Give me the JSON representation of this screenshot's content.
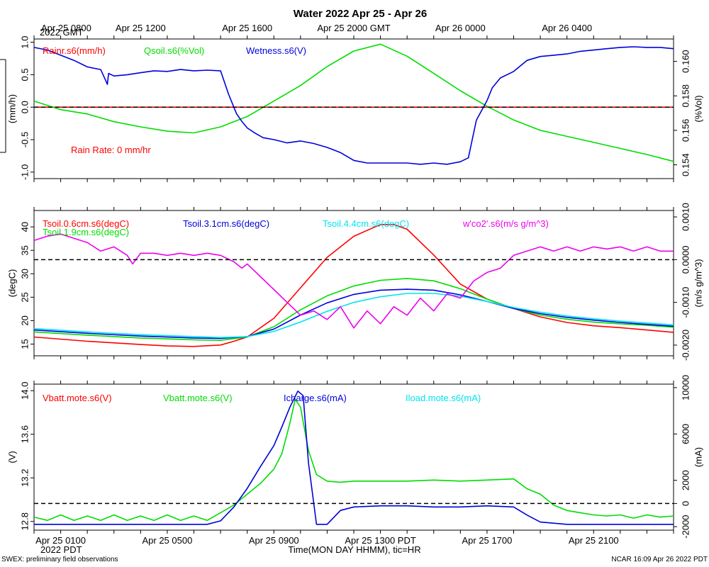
{
  "title": "Water 2022 Apr 25 - Apr 26",
  "top_time_axis": {
    "ticks": [
      {
        "hour": 0,
        "label": "Apr 25 0800"
      },
      {
        "hour": 4,
        "label": "Apr 25 1200"
      },
      {
        "hour": 8,
        "label": "Apr 25 1600"
      },
      {
        "hour": 12,
        "label": "Apr 25 2000 GMT"
      },
      {
        "hour": 16,
        "label": "Apr 26 0000"
      },
      {
        "hour": 20,
        "label": "Apr 26 0400"
      }
    ],
    "year_label": "2022 GMT"
  },
  "bottom_time_axis": {
    "ticks": [
      {
        "hour": 1,
        "label": "Apr 25 0100"
      },
      {
        "hour": 5,
        "label": "Apr 25 0500"
      },
      {
        "hour": 9,
        "label": "Apr 25 0900"
      },
      {
        "hour": 13,
        "label": "Apr 25 1300 PDT"
      },
      {
        "hour": 17,
        "label": "Apr 25 1700"
      },
      {
        "hour": 21,
        "label": "Apr 25 2100"
      }
    ],
    "year_label": "2022 PDT",
    "xlabel": "Time(MON DAY HHMM), tic=HR"
  },
  "footer": {
    "left": "SWEX: preliminary field observations",
    "right": "NCAR 16:09 Apr 26 2022 PDT"
  },
  "chart_data": [
    {
      "type": "line",
      "panel": "rain-wetness-soil-moisture",
      "xlim": [
        0,
        24
      ],
      "left_axis": {
        "label": "(mm/h)",
        "ylim": [
          -1.1,
          1.05
        ],
        "ticks": [
          -1.0,
          -0.5,
          0.0,
          0.5,
          1.0
        ],
        "tick_labels": [
          "-1.0",
          "-0.5",
          "0.0",
          "0.5",
          "1.0"
        ],
        "zero_line": 0.0
      },
      "right_axis": {
        "label": "(%Vol)",
        "ylim": [
          0.1532,
          0.1613
        ],
        "ticks": [
          0.154,
          0.156,
          0.158,
          0.16
        ],
        "tick_labels": [
          "0.154",
          "0.156",
          "0.158",
          "0.160"
        ]
      },
      "annotation": "Rain Rate: 0 mm/hr",
      "series": [
        {
          "name": "Rainr.s6(mm/h)",
          "color": "#ff0000",
          "axis": "left",
          "dashed": true,
          "x": [
            0,
            24
          ],
          "y": [
            0,
            0
          ]
        },
        {
          "name": "Qsoil.s6(%Vol)",
          "color": "#00dd00",
          "axis": "right",
          "x": [
            0,
            1,
            2,
            3,
            4,
            5,
            6,
            7,
            8,
            9,
            10,
            11,
            12,
            13,
            14,
            15,
            16,
            17,
            18,
            19,
            20,
            21,
            22,
            23,
            24
          ],
          "y": [
            0.1577,
            0.1572,
            0.15695,
            0.1565,
            0.1562,
            0.15595,
            0.15585,
            0.1562,
            0.1568,
            0.1577,
            0.1586,
            0.1597,
            0.1606,
            0.161,
            0.1603,
            0.1593,
            0.1583,
            0.1574,
            0.1566,
            0.156,
            0.15565,
            0.1553,
            0.15495,
            0.1546,
            0.1542
          ]
        },
        {
          "name": "Wetness.s6(V)",
          "color": "#0000dd",
          "axis": "left",
          "x": [
            0,
            0.5,
            1,
            1.5,
            2,
            2.5,
            2.7,
            2.75,
            2.8,
            3,
            3.5,
            4,
            4.5,
            5,
            5.5,
            6,
            6.5,
            7,
            7.3,
            7.6,
            7.8,
            8,
            8.3,
            8.6,
            9,
            9.5,
            10,
            10.5,
            11,
            11.5,
            12,
            12.5,
            13,
            13.5,
            14,
            14.5,
            15,
            15.5,
            16,
            16.3,
            16.6,
            16.8,
            17,
            17.2,
            17.5,
            18,
            18.5,
            19,
            19.5,
            20,
            20.5,
            21,
            21.5,
            22,
            22.5,
            23,
            23.5,
            24
          ],
          "y": [
            0.92,
            0.88,
            0.8,
            0.72,
            0.62,
            0.58,
            0.4,
            0.35,
            0.52,
            0.48,
            0.5,
            0.53,
            0.56,
            0.55,
            0.58,
            0.56,
            0.57,
            0.56,
            0.2,
            -0.1,
            -0.22,
            -0.32,
            -0.4,
            -0.47,
            -0.5,
            -0.55,
            -0.52,
            -0.56,
            -0.62,
            -0.7,
            -0.82,
            -0.86,
            -0.86,
            -0.86,
            -0.86,
            -0.88,
            -0.86,
            -0.88,
            -0.84,
            -0.78,
            -0.2,
            -0.05,
            0.1,
            0.3,
            0.45,
            0.55,
            0.72,
            0.78,
            0.8,
            0.82,
            0.86,
            0.88,
            0.9,
            0.92,
            0.93,
            0.92,
            0.92,
            0.9
          ]
        }
      ]
    },
    {
      "type": "line",
      "panel": "soil-temperature-co2-flux",
      "xlim": [
        0,
        24
      ],
      "left_axis": {
        "label": "(degC)",
        "ylim": [
          12.5,
          43.5
        ],
        "ticks": [
          15,
          20,
          25,
          30,
          35,
          40
        ],
        "tick_labels": [
          "15",
          "20",
          "25",
          "30",
          "35",
          "40"
        ]
      },
      "right_axis": {
        "label": "(m/s g/m^3)",
        "ylim": [
          -0.00225,
          0.00115
        ],
        "ticks": [
          -0.002,
          -0.001,
          0.0,
          0.001
        ],
        "tick_labels": [
          "-0.0020",
          "-0.0010",
          "0.0000",
          "0.0010"
        ],
        "zero_line": 0.0
      },
      "series": [
        {
          "name": "Tsoil.0.6cm.s6(degC)",
          "color": "#ff0000",
          "axis": "left",
          "x": [
            0,
            2,
            4,
            5,
            6,
            7,
            7.5,
            8,
            9,
            10,
            11,
            12,
            13,
            13.5,
            14,
            15,
            16,
            17,
            18,
            19,
            20,
            21,
            22,
            23,
            24
          ],
          "y": [
            16.5,
            15.6,
            14.9,
            14.6,
            14.5,
            14.8,
            15.6,
            16.5,
            20.5,
            27.0,
            33.5,
            38.0,
            40.5,
            40.5,
            39.5,
            34.0,
            27.8,
            24.6,
            22.6,
            20.8,
            19.6,
            18.9,
            18.5,
            18.0,
            17.5
          ]
        },
        {
          "name": "Tsoil.1.9cm.s6(degC)",
          "color": "#00dd00",
          "axis": "left",
          "x": [
            0,
            2,
            4,
            6,
            7,
            8,
            9,
            10,
            11,
            12,
            13,
            14,
            15,
            16,
            17,
            18,
            19,
            20,
            21,
            22,
            23,
            24
          ],
          "y": [
            17.6,
            16.9,
            16.3,
            15.9,
            15.8,
            16.5,
            18.7,
            22.3,
            25.3,
            27.4,
            28.6,
            29.0,
            28.5,
            26.8,
            24.6,
            22.6,
            21.2,
            20.3,
            19.7,
            19.3,
            19.0,
            18.6
          ]
        },
        {
          "name": "Tsoil.3.1cm.s6(degC)",
          "color": "#0000dd",
          "axis": "left",
          "x": [
            0,
            2,
            4,
            6,
            7,
            8,
            9,
            10,
            11,
            12,
            13,
            14,
            15,
            16,
            17,
            18,
            19,
            20,
            21,
            22,
            23,
            24
          ],
          "y": [
            18.0,
            17.3,
            16.7,
            16.3,
            16.2,
            16.6,
            18.2,
            21.2,
            23.8,
            25.6,
            26.5,
            26.7,
            26.5,
            25.5,
            24.1,
            22.6,
            21.5,
            20.7,
            20.1,
            19.6,
            19.2,
            18.8
          ]
        },
        {
          "name": "Tsoil.4.4cm.s6(degC)",
          "color": "#00e5ee",
          "axis": "left",
          "x": [
            0,
            2,
            4,
            6,
            7,
            8,
            9,
            10,
            11,
            12,
            13,
            14,
            15,
            16,
            17,
            18,
            19,
            20,
            21,
            22,
            23,
            24
          ],
          "y": [
            18.3,
            17.6,
            17.0,
            16.6,
            16.4,
            16.6,
            17.7,
            19.7,
            22.0,
            23.9,
            25.1,
            25.8,
            25.8,
            25.2,
            24.1,
            22.8,
            21.8,
            21.0,
            20.4,
            19.9,
            19.5,
            19.1
          ]
        },
        {
          "name": "w'co2'.s6(m/s g/m^3)",
          "color": "#ee00ee",
          "axis": "right",
          "x": [
            0,
            0.5,
            1,
            1.5,
            2,
            2.5,
            3,
            3.5,
            3.7,
            4,
            4.5,
            5,
            5.5,
            6,
            6.5,
            7,
            7.5,
            7.8,
            8,
            8.5,
            9,
            9.5,
            10,
            10.5,
            11,
            11.5,
            12,
            12.5,
            13,
            13.5,
            14,
            14.5,
            15,
            15.5,
            16,
            16.5,
            17,
            17.5,
            18,
            18.5,
            19,
            19.5,
            20,
            20.5,
            21,
            21.5,
            22,
            22.5,
            23,
            23.5,
            24
          ],
          "y": [
            0.00045,
            0.00055,
            0.0006,
            0.0005,
            0.0004,
            0.0002,
            0.0003,
            0.0001,
            -0.0001,
            0.00015,
            0.00015,
            0.0001,
            0.00015,
            0.0001,
            0.00015,
            0.0001,
            -5e-05,
            -0.0002,
            -0.0001,
            -0.0004,
            -0.0007,
            -0.001,
            -0.0013,
            -0.0012,
            -0.0014,
            -0.0011,
            -0.0016,
            -0.0012,
            -0.0015,
            -0.0011,
            -0.0013,
            -0.0009,
            -0.0012,
            -0.0008,
            -0.0009,
            -0.0005,
            -0.0003,
            -0.0002,
            0.0001,
            0.0002,
            0.0003,
            0.0002,
            0.0003,
            0.0002,
            0.0003,
            0.00025,
            0.0003,
            0.0002,
            0.0003,
            0.0002,
            0.0002
          ]
        }
      ]
    },
    {
      "type": "line",
      "panel": "battery-and-charge-current",
      "xlim": [
        0,
        24
      ],
      "left_axis": {
        "label": "(V)",
        "ylim": [
          12.72,
          14.06
        ],
        "ticks": [
          12.8,
          13.2,
          13.6,
          14.0
        ],
        "tick_labels": [
          "12.8",
          "13.2",
          "13.6",
          "14.0"
        ]
      },
      "right_axis": {
        "label": "(mA)",
        "ylim": [
          -2300,
          10300
        ],
        "ticks": [
          -2000,
          0,
          2000,
          6000,
          10000
        ],
        "tick_labels": [
          "-2000",
          "0",
          "2000",
          "6000",
          "10000"
        ],
        "zero_line": 0
      },
      "series": [
        {
          "name": "Vbatt.mote.s6(V)",
          "color": "#ff0000",
          "axis": "left",
          "x": [],
          "y": []
        },
        {
          "name": "Vbatt.mote.s6(V)",
          "color": "#00dd00",
          "axis": "left",
          "x": [
            0,
            0.5,
            1,
            1.5,
            2,
            2.5,
            3,
            3.5,
            4,
            4.5,
            5,
            5.5,
            6,
            6.5,
            7,
            7.5,
            8,
            8.5,
            9,
            9.3,
            9.6,
            9.8,
            10,
            10.3,
            10.6,
            11,
            11.5,
            12,
            13,
            14,
            15,
            16,
            17,
            18,
            18.5,
            19,
            19.5,
            20,
            20.5,
            21,
            21.5,
            22,
            22.5,
            23,
            23.5,
            24
          ],
          "y": [
            12.84,
            12.81,
            12.86,
            12.81,
            12.85,
            12.81,
            12.86,
            12.81,
            12.85,
            12.81,
            12.86,
            12.81,
            12.85,
            12.81,
            12.88,
            12.95,
            13.05,
            13.15,
            13.28,
            13.42,
            13.7,
            13.92,
            13.85,
            13.45,
            13.23,
            13.17,
            13.16,
            13.17,
            13.17,
            13.17,
            13.18,
            13.17,
            13.18,
            13.19,
            13.1,
            13.05,
            12.95,
            12.9,
            12.88,
            12.86,
            12.85,
            12.86,
            12.83,
            12.86,
            12.84,
            12.85
          ]
        },
        {
          "name": "Icharge.s6(mA)",
          "color": "#0000dd",
          "axis": "right",
          "x": [
            0,
            2,
            4,
            6,
            6.5,
            7,
            7.5,
            8,
            8.5,
            9,
            9.3,
            9.6,
            9.9,
            10.1,
            10.3,
            10.6,
            11,
            11.5,
            12,
            13,
            14,
            15,
            16,
            17,
            18,
            18.5,
            19,
            20,
            21,
            22,
            23,
            24
          ],
          "y": [
            -1800,
            -1800,
            -1800,
            -1800,
            -1800,
            -1500,
            -300,
            1300,
            3200,
            5000,
            6600,
            8300,
            9700,
            9300,
            3500,
            -1800,
            -1800,
            -600,
            -300,
            -200,
            -200,
            -300,
            -300,
            -200,
            -300,
            -1000,
            -1600,
            -1800,
            -1800,
            -1800,
            -1800,
            -1800
          ]
        },
        {
          "name": "Iload.mote.s6(mA)",
          "color": "#00e5ee",
          "axis": "right",
          "x": [],
          "y": []
        }
      ]
    }
  ]
}
